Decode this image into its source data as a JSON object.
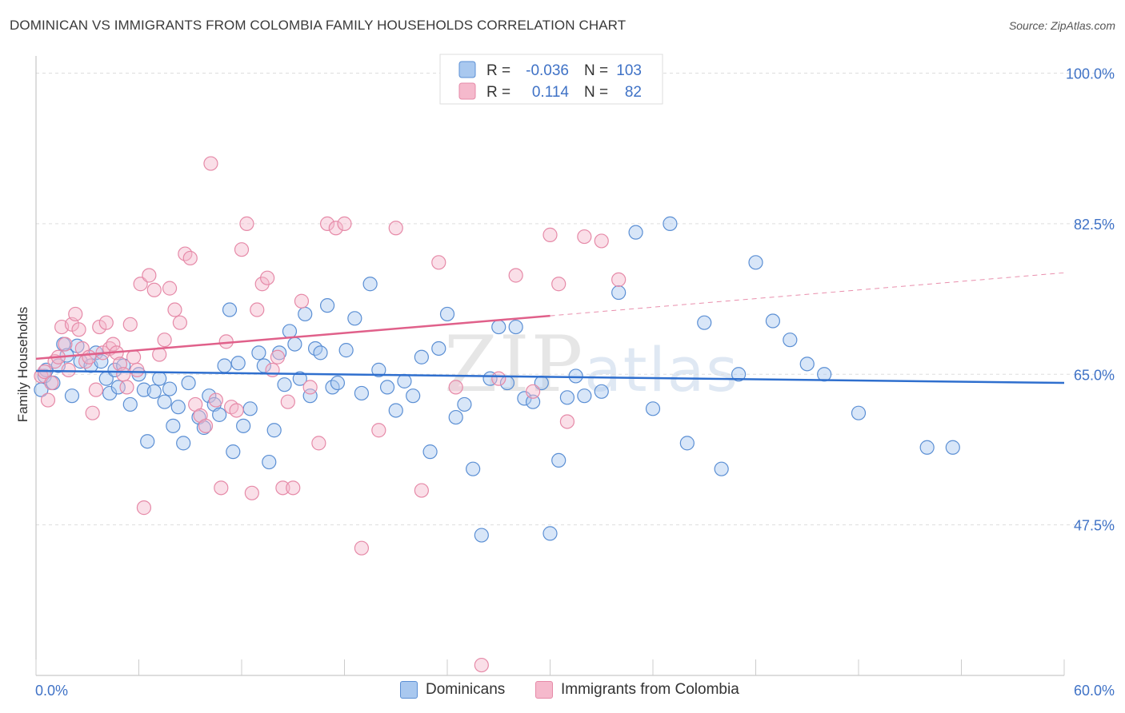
{
  "title": "DOMINICAN VS IMMIGRANTS FROM COLOMBIA FAMILY HOUSEHOLDS CORRELATION CHART",
  "source": "Source: ZipAtlas.com",
  "watermark": {
    "zip": "ZIP",
    "atlas": "atlas"
  },
  "colors": {
    "blue_fill": "#a9c8ef",
    "blue_stroke": "#5b8fd4",
    "blue_line": "#2f6fce",
    "pink_fill": "#f5b9cc",
    "pink_stroke": "#e68aa8",
    "pink_line": "#e0608a",
    "axis_text": "#3f72c6",
    "grid": "#dddddd"
  },
  "legend_top": {
    "rows": [
      {
        "r_label": "R =",
        "r_value": "-0.036",
        "n_label": "N =",
        "n_value": "103"
      },
      {
        "r_label": "R =",
        "r_value": "0.114",
        "n_label": "N =",
        "n_value": "82"
      }
    ]
  },
  "legend_bottom": [
    "Dominicans",
    "Immigrants from Colombia"
  ],
  "chart_data": {
    "type": "scatter",
    "title": "DOMINICAN VS IMMIGRANTS FROM COLOMBIA FAMILY HOUSEHOLDS CORRELATION CHART",
    "xlabel": "",
    "ylabel": "Family Households",
    "xlim": [
      0,
      60
    ],
    "ylim": [
      30,
      102
    ],
    "x_tick_labels": [
      "0.0%",
      "60.0%"
    ],
    "y_ticks": [
      47.5,
      65.0,
      82.5,
      100.0
    ],
    "y_tick_labels": [
      "47.5%",
      "65.0%",
      "82.5%",
      "100.0%"
    ],
    "grid": true,
    "legend_placement": "top-center",
    "series": [
      {
        "name": "Dominicans",
        "r": -0.036,
        "n": 103,
        "trend": {
          "x": [
            0,
            60
          ],
          "y": [
            65.4,
            64.0
          ]
        },
        "points": [
          [
            0.3,
            63.2
          ],
          [
            0.5,
            64.8
          ],
          [
            0.6,
            65.5
          ],
          [
            1.0,
            64.0
          ],
          [
            1.3,
            66.0
          ],
          [
            1.6,
            68.5
          ],
          [
            1.8,
            67.2
          ],
          [
            2.1,
            62.5
          ],
          [
            2.4,
            68.3
          ],
          [
            2.6,
            66.5
          ],
          [
            3.2,
            66.0
          ],
          [
            3.5,
            67.5
          ],
          [
            3.8,
            66.5
          ],
          [
            4.1,
            64.5
          ],
          [
            4.3,
            62.8
          ],
          [
            4.6,
            65.5
          ],
          [
            4.8,
            63.5
          ],
          [
            5.1,
            66.0
          ],
          [
            5.5,
            61.5
          ],
          [
            6.0,
            65.0
          ],
          [
            6.3,
            63.2
          ],
          [
            6.5,
            57.2
          ],
          [
            6.9,
            63.0
          ],
          [
            7.2,
            64.5
          ],
          [
            7.5,
            61.8
          ],
          [
            7.8,
            63.3
          ],
          [
            8.0,
            59.0
          ],
          [
            8.3,
            61.2
          ],
          [
            8.6,
            57.0
          ],
          [
            8.9,
            64.0
          ],
          [
            9.5,
            60.0
          ],
          [
            9.8,
            58.8
          ],
          [
            10.1,
            62.5
          ],
          [
            10.4,
            61.5
          ],
          [
            10.7,
            60.3
          ],
          [
            11.0,
            66.0
          ],
          [
            11.3,
            72.5
          ],
          [
            11.5,
            56.0
          ],
          [
            11.8,
            66.3
          ],
          [
            12.1,
            59.0
          ],
          [
            12.5,
            61.0
          ],
          [
            13.0,
            67.5
          ],
          [
            13.3,
            66.0
          ],
          [
            13.6,
            54.8
          ],
          [
            13.9,
            58.5
          ],
          [
            14.2,
            67.5
          ],
          [
            14.5,
            63.8
          ],
          [
            14.8,
            70.0
          ],
          [
            15.1,
            68.5
          ],
          [
            15.4,
            64.5
          ],
          [
            15.7,
            72.0
          ],
          [
            16.0,
            62.5
          ],
          [
            16.3,
            68.0
          ],
          [
            16.6,
            67.5
          ],
          [
            17.0,
            73.0
          ],
          [
            17.3,
            63.5
          ],
          [
            17.6,
            64.0
          ],
          [
            18.1,
            67.8
          ],
          [
            18.6,
            71.5
          ],
          [
            19.0,
            62.8
          ],
          [
            19.5,
            75.5
          ],
          [
            20.0,
            65.5
          ],
          [
            20.5,
            63.5
          ],
          [
            21.0,
            60.8
          ],
          [
            21.5,
            64.2
          ],
          [
            22.0,
            62.5
          ],
          [
            22.5,
            67.0
          ],
          [
            23.0,
            56.0
          ],
          [
            23.5,
            68.0
          ],
          [
            24.0,
            72.0
          ],
          [
            24.5,
            60.0
          ],
          [
            25.0,
            61.5
          ],
          [
            25.5,
            54.0
          ],
          [
            26.0,
            46.3
          ],
          [
            26.5,
            64.5
          ],
          [
            27.0,
            70.5
          ],
          [
            27.5,
            64.0
          ],
          [
            28.0,
            70.5
          ],
          [
            28.5,
            62.2
          ],
          [
            29.0,
            61.8
          ],
          [
            29.5,
            64.0
          ],
          [
            30.0,
            46.5
          ],
          [
            30.5,
            55.0
          ],
          [
            31.0,
            62.3
          ],
          [
            31.5,
            64.8
          ],
          [
            32.0,
            62.5
          ],
          [
            33.0,
            63.0
          ],
          [
            34.0,
            74.5
          ],
          [
            35.0,
            81.5
          ],
          [
            36.0,
            61.0
          ],
          [
            37.0,
            82.5
          ],
          [
            38.0,
            57.0
          ],
          [
            39.0,
            71.0
          ],
          [
            40.0,
            54.0
          ],
          [
            41.0,
            65.0
          ],
          [
            42.0,
            78.0
          ],
          [
            43.0,
            71.2
          ],
          [
            44.0,
            69.0
          ],
          [
            45.0,
            66.2
          ],
          [
            46.0,
            65.0
          ],
          [
            48.0,
            60.5
          ],
          [
            52.0,
            56.5
          ],
          [
            53.5,
            56.5
          ]
        ]
      },
      {
        "name": "Immigrants from Colombia",
        "r": 0.114,
        "n": 82,
        "trend": {
          "x": [
            0,
            30
          ],
          "y": [
            66.8,
            71.8
          ]
        },
        "trend_extension": {
          "x": [
            30,
            60
          ],
          "y": [
            71.8,
            76.8
          ]
        },
        "points": [
          [
            0.3,
            64.8
          ],
          [
            0.5,
            65.3
          ],
          [
            0.7,
            62.0
          ],
          [
            0.9,
            64.0
          ],
          [
            1.1,
            66.5
          ],
          [
            1.3,
            67.0
          ],
          [
            1.5,
            70.5
          ],
          [
            1.7,
            68.5
          ],
          [
            1.9,
            65.5
          ],
          [
            2.1,
            70.8
          ],
          [
            2.3,
            72.0
          ],
          [
            2.5,
            70.2
          ],
          [
            2.7,
            68.0
          ],
          [
            2.9,
            66.5
          ],
          [
            3.1,
            67.0
          ],
          [
            3.3,
            60.5
          ],
          [
            3.5,
            63.2
          ],
          [
            3.7,
            70.5
          ],
          [
            3.9,
            67.5
          ],
          [
            4.1,
            71.0
          ],
          [
            4.3,
            68.0
          ],
          [
            4.5,
            68.5
          ],
          [
            4.7,
            67.5
          ],
          [
            4.9,
            66.2
          ],
          [
            5.1,
            65.0
          ],
          [
            5.3,
            63.5
          ],
          [
            5.5,
            70.8
          ],
          [
            5.7,
            67.0
          ],
          [
            5.9,
            65.5
          ],
          [
            6.1,
            75.5
          ],
          [
            6.3,
            49.5
          ],
          [
            6.6,
            76.5
          ],
          [
            6.9,
            74.8
          ],
          [
            7.2,
            67.3
          ],
          [
            7.5,
            69.0
          ],
          [
            7.8,
            75.0
          ],
          [
            8.1,
            72.5
          ],
          [
            8.4,
            71.0
          ],
          [
            8.7,
            79.0
          ],
          [
            9.0,
            78.5
          ],
          [
            9.3,
            61.5
          ],
          [
            9.6,
            60.2
          ],
          [
            9.9,
            59.0
          ],
          [
            10.2,
            89.5
          ],
          [
            10.5,
            62.0
          ],
          [
            10.8,
            51.8
          ],
          [
            11.1,
            68.8
          ],
          [
            11.4,
            61.2
          ],
          [
            11.7,
            60.8
          ],
          [
            12.0,
            79.5
          ],
          [
            12.3,
            82.5
          ],
          [
            12.6,
            51.2
          ],
          [
            12.9,
            72.5
          ],
          [
            13.2,
            75.5
          ],
          [
            13.5,
            76.2
          ],
          [
            13.8,
            65.5
          ],
          [
            14.1,
            67.0
          ],
          [
            14.4,
            51.8
          ],
          [
            14.7,
            61.8
          ],
          [
            15.0,
            51.8
          ],
          [
            15.5,
            73.5
          ],
          [
            16.0,
            63.5
          ],
          [
            16.5,
            57.0
          ],
          [
            17.0,
            82.5
          ],
          [
            17.5,
            82.0
          ],
          [
            18.0,
            82.5
          ],
          [
            19.0,
            44.8
          ],
          [
            20.0,
            58.5
          ],
          [
            21.0,
            82.0
          ],
          [
            22.5,
            51.5
          ],
          [
            23.5,
            78.0
          ],
          [
            24.5,
            63.5
          ],
          [
            26.0,
            31.2
          ],
          [
            27.0,
            64.5
          ],
          [
            28.0,
            76.5
          ],
          [
            29.0,
            63.0
          ],
          [
            30.0,
            81.2
          ],
          [
            30.5,
            75.5
          ],
          [
            31.0,
            59.5
          ],
          [
            32.0,
            81.0
          ],
          [
            33.0,
            80.5
          ],
          [
            34.0,
            76.0
          ]
        ]
      }
    ]
  }
}
